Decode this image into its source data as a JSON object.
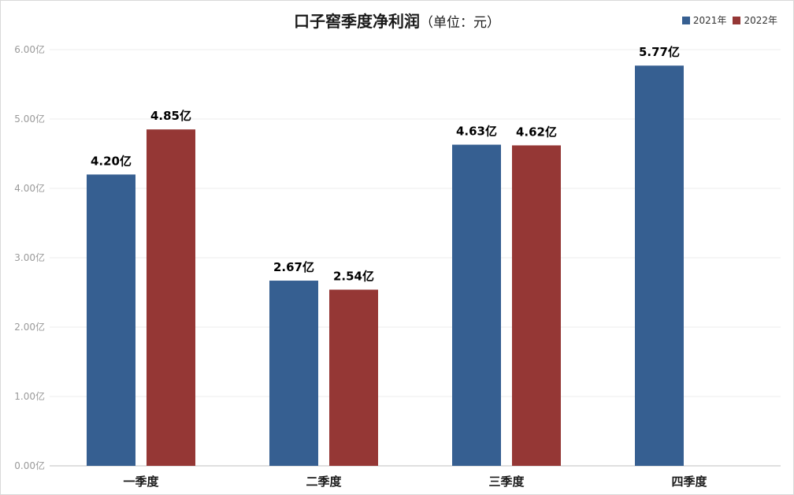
{
  "title": "口子窖季度净利润",
  "subtitle": "（单位：元）",
  "colors": {
    "series_2021": "#365f91",
    "series_2022": "#953735",
    "grid": "#eeeeee",
    "axis": "#bfbfbf"
  },
  "chart_data": {
    "type": "bar",
    "title": "口子窖季度净利润（单位：元）",
    "categories": [
      "一季度",
      "二季度",
      "三季度",
      "四季度"
    ],
    "series": [
      {
        "name": "2021年",
        "values": [
          4.2,
          2.67,
          4.63,
          5.77
        ],
        "labels": [
          "4.20亿",
          "2.67亿",
          "4.63亿",
          "5.77亿"
        ]
      },
      {
        "name": "2022年",
        "values": [
          4.85,
          2.54,
          4.62,
          null
        ],
        "labels": [
          "4.85亿",
          "2.54亿",
          "4.62亿",
          ""
        ]
      }
    ],
    "y_ticks": [
      "0.00亿",
      "1.00亿",
      "2.00亿",
      "3.00亿",
      "4.00亿",
      "5.00亿",
      "6.00亿"
    ],
    "ylim": [
      0,
      6
    ],
    "xlabel": "",
    "ylabel": "",
    "grid": true,
    "legend": "top-right"
  }
}
